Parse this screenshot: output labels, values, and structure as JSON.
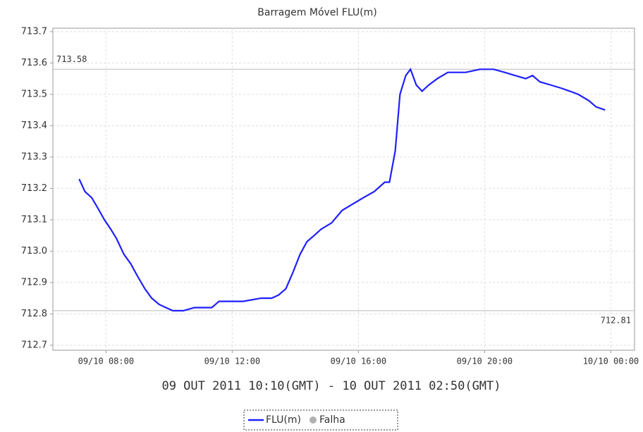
{
  "chart_data": {
    "type": "line",
    "title": "Barragem Móvel  FLU(m)",
    "xlabel": "09 OUT 2011 10:10(GMT) - 10 OUT 2011 02:50(GMT)",
    "x": [
      "09/10 07:09",
      "09/10 07:20",
      "09/10 07:33",
      "09/10 07:47",
      "09/10 07:57",
      "09/10 08:09",
      "09/10 08:20",
      "09/10 08:34",
      "09/10 08:47",
      "09/10 09:00",
      "09/10 09:14",
      "09/10 09:27",
      "09/10 09:41",
      "09/10 09:54",
      "09/10 10:07",
      "09/10 10:27",
      "09/10 10:48",
      "09/10 11:08",
      "09/10 11:21",
      "09/10 11:35",
      "09/10 12:01",
      "09/10 12:21",
      "09/10 12:55",
      "09/10 13:15",
      "09/10 13:28",
      "09/10 13:42",
      "09/10 13:55",
      "09/10 14:09",
      "09/10 14:22",
      "09/10 14:36",
      "09/10 14:49",
      "09/10 15:09",
      "09/10 15:29",
      "09/10 15:49",
      "09/10 16:09",
      "09/10 16:30",
      "09/10 16:50",
      "09/10 16:59",
      "09/10 17:10",
      "09/10 17:19",
      "09/10 17:30",
      "09/10 17:39",
      "09/10 17:50",
      "09/10 18:01",
      "09/10 18:14",
      "09/10 18:30",
      "09/10 18:50",
      "09/10 19:24",
      "09/10 19:51",
      "09/10 20:17",
      "09/10 20:38",
      "09/10 20:58",
      "09/10 21:18",
      "09/10 21:31",
      "09/10 21:45",
      "09/10 22:05",
      "09/10 22:25",
      "09/10 22:42",
      "09/10 22:58",
      "09/10 23:18",
      "09/10 23:32",
      "09/10 23:49"
    ],
    "series": [
      {
        "name": "FLU(m)",
        "color": "#1f1fff",
        "values": [
          713.23,
          713.19,
          713.17,
          713.13,
          713.1,
          713.07,
          713.04,
          712.99,
          712.96,
          712.92,
          712.88,
          712.85,
          712.83,
          712.82,
          712.81,
          712.81,
          712.82,
          712.82,
          712.82,
          712.84,
          712.84,
          712.84,
          712.85,
          712.85,
          712.86,
          712.88,
          712.93,
          712.99,
          713.03,
          713.05,
          713.07,
          713.09,
          713.13,
          713.15,
          713.17,
          713.19,
          713.22,
          713.22,
          713.32,
          713.5,
          713.56,
          713.58,
          713.53,
          713.51,
          713.53,
          713.55,
          713.57,
          713.57,
          713.58,
          713.58,
          713.57,
          713.56,
          713.55,
          713.56,
          713.54,
          713.53,
          713.52,
          713.51,
          713.5,
          713.48,
          713.46,
          713.45
        ]
      }
    ],
    "legend_extra": [
      {
        "name": "Falha",
        "color": "#b0b0b0"
      }
    ],
    "markers": [
      713.58,
      712.81
    ],
    "xlim": [
      "09/10 06:19",
      "10/10 00:45"
    ],
    "xticks": [
      "09/10 08:00",
      "09/10 12:00",
      "09/10 16:00",
      "09/10 20:00",
      "10/10 00:00"
    ],
    "ylim": [
      712.684,
      713.711
    ],
    "yticks": [
      712.7,
      712.8,
      712.9,
      {
        "value": 713,
        "label": "713.0"
      },
      713.1,
      713.2,
      713.3,
      713.4,
      713.5,
      713.6,
      713.7
    ],
    "grid": true
  }
}
